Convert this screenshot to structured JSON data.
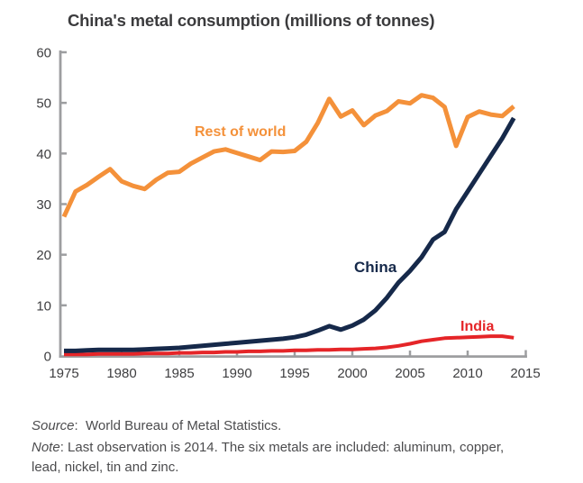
{
  "figure": {
    "title": "China's metal consumption (millions of tonnes)",
    "source": {
      "label": "Source",
      "text": ":  World Bureau of Metal Statistics."
    },
    "note": {
      "label": "Note",
      "text": ": Last observation is 2014. The six metals are included: aluminum, copper, lead, nickel, tin and zinc."
    }
  },
  "colors": {
    "axis": "#9D9EA0",
    "tick_label": "#3E3E40",
    "title": "#3B3B3D",
    "note_text": "#4C4C4E",
    "rest_of_world": "#F4913A",
    "china": "#16294A",
    "india": "#E52528"
  },
  "chart_data": {
    "type": "line",
    "title": "China's metal consumption (millions of tonnes)",
    "xlabel": "",
    "ylabel": "millions of tonnes",
    "xlim": [
      1975,
      2015
    ],
    "ylim": [
      0,
      60
    ],
    "grid": false,
    "legend_position": "inline-labels",
    "x_ticks": [
      1975,
      1980,
      1985,
      1990,
      1995,
      2000,
      2005,
      2010,
      2015
    ],
    "y_ticks": [
      0,
      10,
      20,
      30,
      40,
      50,
      60
    ],
    "x": [
      1975,
      1976,
      1977,
      1978,
      1979,
      1980,
      1981,
      1982,
      1983,
      1984,
      1985,
      1986,
      1987,
      1988,
      1989,
      1990,
      1991,
      1992,
      1993,
      1994,
      1995,
      1996,
      1997,
      1998,
      1999,
      2000,
      2001,
      2002,
      2003,
      2004,
      2005,
      2006,
      2007,
      2008,
      2009,
      2010,
      2011,
      2012,
      2013,
      2014
    ],
    "series": [
      {
        "name": "Rest of world",
        "color": "#F4913A",
        "values": [
          27.5,
          32.5,
          33.8,
          35.4,
          36.9,
          34.5,
          33.6,
          33.0,
          34.8,
          36.2,
          36.4,
          38.0,
          39.2,
          40.4,
          40.8,
          40.1,
          39.4,
          38.7,
          40.4,
          40.3,
          40.5,
          42.3,
          46.0,
          50.8,
          47.3,
          48.5,
          45.6,
          47.5,
          48.4,
          50.3,
          49.9,
          51.5,
          51.0,
          49.2,
          41.5,
          47.2,
          48.3,
          47.7,
          47.4,
          49.3
        ]
      },
      {
        "name": "India",
        "color": "#E52528",
        "values": [
          0.3,
          0.3,
          0.3,
          0.4,
          0.4,
          0.4,
          0.4,
          0.5,
          0.5,
          0.5,
          0.6,
          0.6,
          0.7,
          0.7,
          0.8,
          0.8,
          0.9,
          0.9,
          1.0,
          1.0,
          1.1,
          1.1,
          1.2,
          1.2,
          1.3,
          1.3,
          1.4,
          1.5,
          1.7,
          2.0,
          2.4,
          2.9,
          3.2,
          3.5,
          3.6,
          3.7,
          3.8,
          3.9,
          3.9,
          3.6
        ]
      },
      {
        "name": "China",
        "color": "#16294A",
        "values": [
          1.0,
          1.0,
          1.1,
          1.2,
          1.2,
          1.2,
          1.2,
          1.3,
          1.4,
          1.5,
          1.6,
          1.8,
          2.0,
          2.2,
          2.4,
          2.6,
          2.8,
          3.0,
          3.2,
          3.4,
          3.7,
          4.2,
          5.0,
          5.9,
          5.2,
          6.0,
          7.2,
          9.0,
          11.5,
          14.5,
          16.8,
          19.5,
          23.0,
          24.5,
          29.0,
          32.5,
          36.0,
          39.5,
          43.0,
          47.0
        ]
      }
    ]
  }
}
